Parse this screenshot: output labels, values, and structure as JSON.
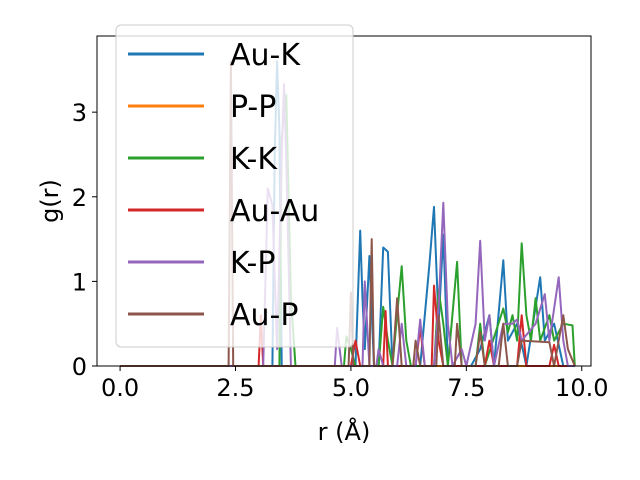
{
  "chart_data": {
    "type": "line",
    "xlabel": "r (Å)",
    "ylabel": "g(r)",
    "xlim": [
      -0.5,
      10.2
    ],
    "ylim": [
      0,
      3.9
    ],
    "xticks": [
      "0.0",
      "2.5",
      "5.0",
      "7.5",
      "10.0"
    ],
    "xtick_values": [
      0,
      2.5,
      5,
      7.5,
      10
    ],
    "yticks": [
      "0",
      "1",
      "2",
      "3"
    ],
    "ytick_values": [
      0,
      1,
      2,
      3
    ],
    "grid": false,
    "legend_position": "top-left",
    "series": [
      {
        "name": "Au-K",
        "color": "#1f77b4",
        "points": [
          [
            0,
            0
          ],
          [
            3.3,
            0
          ],
          [
            3.35,
            2.5
          ],
          [
            3.4,
            3.6
          ],
          [
            3.45,
            2.8
          ],
          [
            3.5,
            0
          ],
          [
            5.1,
            0
          ],
          [
            5.2,
            1.6
          ],
          [
            5.25,
            0.8
          ],
          [
            5.3,
            0.2
          ],
          [
            5.4,
            1.3
          ],
          [
            5.5,
            0
          ],
          [
            5.6,
            0
          ],
          [
            5.7,
            1.4
          ],
          [
            5.8,
            1.35
          ],
          [
            5.9,
            0
          ],
          [
            6.5,
            0
          ],
          [
            6.7,
            1.2
          ],
          [
            6.8,
            1.88
          ],
          [
            6.9,
            0.5
          ],
          [
            7.0,
            1.55
          ],
          [
            7.1,
            0
          ],
          [
            7.6,
            0
          ],
          [
            7.8,
            0.2
          ],
          [
            8.0,
            0.6
          ],
          [
            8.1,
            0
          ],
          [
            8.3,
            1.25
          ],
          [
            8.4,
            0.3
          ],
          [
            8.6,
            0.5
          ],
          [
            8.8,
            0
          ],
          [
            9.1,
            1.05
          ],
          [
            9.2,
            0.3
          ],
          [
            9.4,
            0.5
          ],
          [
            9.6,
            0
          ],
          [
            9.85,
            0
          ]
        ]
      },
      {
        "name": "P-P",
        "color": "#ff7f0e",
        "points": [
          [
            0,
            0
          ],
          [
            9.85,
            0
          ]
        ]
      },
      {
        "name": "K-K",
        "color": "#2ca02c",
        "points": [
          [
            0,
            0
          ],
          [
            3.45,
            0
          ],
          [
            3.5,
            2.7
          ],
          [
            3.6,
            3.2
          ],
          [
            3.7,
            0.8
          ],
          [
            3.8,
            0
          ],
          [
            4.85,
            0
          ],
          [
            4.9,
            0.35
          ],
          [
            5.0,
            0.2
          ],
          [
            5.1,
            0
          ],
          [
            5.6,
            0
          ],
          [
            5.7,
            0.7
          ],
          [
            5.8,
            0.3
          ],
          [
            5.9,
            0
          ],
          [
            6.0,
            0.6
          ],
          [
            6.1,
            1.18
          ],
          [
            6.2,
            0.3
          ],
          [
            6.3,
            0
          ],
          [
            6.8,
            0
          ],
          [
            6.9,
            0.9
          ],
          [
            7.0,
            0.5
          ],
          [
            7.1,
            0
          ],
          [
            7.3,
            1.23
          ],
          [
            7.4,
            0
          ],
          [
            7.7,
            0
          ],
          [
            7.8,
            0.5
          ],
          [
            7.9,
            0
          ],
          [
            8.3,
            0.68
          ],
          [
            8.4,
            0.4
          ],
          [
            8.5,
            0.6
          ],
          [
            8.6,
            0.3
          ],
          [
            8.7,
            1.45
          ],
          [
            8.8,
            0.6
          ],
          [
            8.9,
            0.3
          ],
          [
            9.0,
            0.8
          ],
          [
            9.1,
            0.3
          ],
          [
            9.3,
            0.6
          ],
          [
            9.4,
            0.3
          ],
          [
            9.6,
            0.5
          ],
          [
            9.8,
            0.48
          ],
          [
            9.85,
            0
          ]
        ]
      },
      {
        "name": "Au-Au",
        "color": "#d62728",
        "points": [
          [
            0,
            0
          ],
          [
            3.0,
            0
          ],
          [
            3.05,
            0.6
          ],
          [
            3.1,
            0
          ],
          [
            5.0,
            0
          ],
          [
            5.1,
            0.3
          ],
          [
            5.2,
            0
          ],
          [
            5.7,
            0
          ],
          [
            5.75,
            0.65
          ],
          [
            5.8,
            0
          ],
          [
            6.4,
            0
          ],
          [
            6.5,
            0.45
          ],
          [
            6.6,
            0
          ],
          [
            6.75,
            0
          ],
          [
            6.8,
            0.95
          ],
          [
            6.9,
            0.3
          ],
          [
            7.0,
            0
          ],
          [
            7.9,
            0
          ],
          [
            8.0,
            0.3
          ],
          [
            8.1,
            0
          ],
          [
            8.6,
            0
          ],
          [
            8.7,
            0.6
          ],
          [
            8.8,
            0
          ],
          [
            9.3,
            0
          ],
          [
            9.4,
            0.25
          ],
          [
            9.5,
            0
          ],
          [
            9.85,
            0
          ]
        ]
      },
      {
        "name": "K-P",
        "color": "#9467bd",
        "points": [
          [
            0,
            0
          ],
          [
            3.1,
            0
          ],
          [
            3.2,
            2.1
          ],
          [
            3.3,
            1.9
          ],
          [
            3.4,
            0.2
          ],
          [
            3.5,
            2.5
          ],
          [
            3.55,
            3.33
          ],
          [
            3.6,
            2.4
          ],
          [
            3.7,
            0
          ],
          [
            4.65,
            0
          ],
          [
            4.7,
            0.45
          ],
          [
            4.8,
            0
          ],
          [
            5.25,
            0
          ],
          [
            5.3,
            1.0
          ],
          [
            5.4,
            0
          ],
          [
            5.55,
            0
          ],
          [
            5.6,
            0.2
          ],
          [
            5.7,
            0
          ],
          [
            6.0,
            0
          ],
          [
            6.1,
            0.5
          ],
          [
            6.2,
            0
          ],
          [
            6.4,
            0
          ],
          [
            6.5,
            0.55
          ],
          [
            6.6,
            0
          ],
          [
            6.8,
            0
          ],
          [
            6.9,
            0.7
          ],
          [
            7.0,
            1.93
          ],
          [
            7.1,
            0.5
          ],
          [
            7.2,
            0
          ],
          [
            7.4,
            0.2
          ],
          [
            7.5,
            0
          ],
          [
            7.7,
            0.5
          ],
          [
            7.8,
            1.48
          ],
          [
            7.9,
            0.3
          ],
          [
            8.0,
            0.6
          ],
          [
            8.1,
            0
          ],
          [
            8.3,
            0.5
          ],
          [
            8.5,
            0.5
          ],
          [
            8.6,
            0.55
          ],
          [
            8.7,
            0.3
          ],
          [
            9.0,
            0.5
          ],
          [
            9.2,
            0.85
          ],
          [
            9.3,
            0.3
          ],
          [
            9.5,
            1.05
          ],
          [
            9.6,
            0.3
          ],
          [
            9.7,
            0
          ],
          [
            9.85,
            0
          ]
        ]
      },
      {
        "name": "Au-P",
        "color": "#8c564b",
        "points": [
          [
            0,
            0
          ],
          [
            2.35,
            0
          ],
          [
            2.4,
            3.6
          ],
          [
            2.45,
            0
          ],
          [
            4.95,
            0
          ],
          [
            5.0,
            0.87
          ],
          [
            5.05,
            0
          ],
          [
            5.4,
            0
          ],
          [
            5.45,
            1.5
          ],
          [
            5.5,
            0
          ],
          [
            5.9,
            0
          ],
          [
            6.0,
            0.8
          ],
          [
            6.1,
            0
          ],
          [
            6.35,
            0
          ],
          [
            6.4,
            0.3
          ],
          [
            6.5,
            0
          ],
          [
            6.85,
            0
          ],
          [
            6.9,
            0.6
          ],
          [
            7.0,
            0
          ],
          [
            7.25,
            0
          ],
          [
            7.3,
            0.5
          ],
          [
            7.4,
            0
          ],
          [
            7.7,
            0
          ],
          [
            7.8,
            0.4
          ],
          [
            7.9,
            0
          ],
          [
            8.2,
            0
          ],
          [
            8.3,
            0.5
          ],
          [
            8.4,
            0
          ],
          [
            8.6,
            0
          ],
          [
            8.7,
            0.3
          ],
          [
            9.3,
            0.28
          ],
          [
            9.4,
            0
          ],
          [
            9.6,
            0.6
          ],
          [
            9.7,
            0.2
          ],
          [
            9.85,
            0
          ]
        ]
      }
    ]
  }
}
